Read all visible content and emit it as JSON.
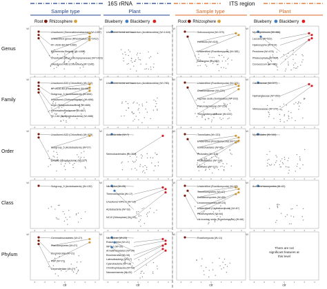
{
  "colors": {
    "blue": "#1f3f8f",
    "orange": "#d9661f",
    "root": "#7a1a0c",
    "rhizosphere": "#d8a23a",
    "blueberry": "#3f7ec9",
    "blackberry": "#d81f24",
    "dots": "#8a8a8a"
  },
  "headers": {
    "s16": "16S rRNA",
    "its": "ITS region",
    "sample_type": "Sample type",
    "plant": "Plant",
    "root": "Root",
    "rhizosphere": "Rhizosphere",
    "blueberry": "Blueberry",
    "blackberry": "Blackberry"
  },
  "rows": [
    "Genus",
    "Family",
    "Order",
    "Class",
    "Phylum"
  ],
  "xlabel": "clr",
  "ylabel": "W",
  "no_features_note": "There are not significant features at this level",
  "chart_data": [
    {
      "type": "scatter",
      "title": "16S rRNA / Sample type",
      "xlabel": "clr",
      "ylabel": "W",
      "panels": [
        {
          "row": "Genus",
          "annotations": [
            "Uncultured (Gemmatimonadaceae) (W=1397)",
            "Unidentified genus (Rhizobiales) (W=1412)",
            "KF-JG30-B3 (W=1390)",
            "Escherichia-Shigella (W=1458)",
            "Uncultured genus (Micropepsaceae) (W=1423)",
            "Uncultured AD3 (Chloroflexi) (W=1345)"
          ]
        },
        {
          "row": "Family",
          "annotations": [
            "Uncultured AD3 (Chloroflexi) (W=712)",
            "KF-JG30-B3 (Rhizobiales) (W=680)",
            "Subgroup_5 (Acidobacteria) (W=654)",
            "Uncultured (Chitinophagales) (W=696)",
            "A21b (Betaproteobacteria) (W=665)",
            "Gemmatimonadaceae (W=687)",
            "SC-I-84 (Betaproteobacteria) (W=688)"
          ]
        },
        {
          "row": "Order",
          "annotations": [
            "Uncultured AD3 (Chloroflexi) (W=379)",
            "Subgroup_5 (Acidobacteria) (W=3?)",
            "OPB56 (Ignavibacteria) (W=32?)"
          ]
        },
        {
          "row": "Class",
          "annotations": [
            "Subgroup_5 (Acidobacteria) (W=130)"
          ]
        },
        {
          "row": "Phylum",
          "annotations": [
            "Gemmatimonadetes (W=2?)",
            "Planctomycetes (W=2?)",
            "Elusimicrobia (W=21)",
            "FBP (W=2?)",
            "Dependentiae (W=2?)"
          ]
        }
      ]
    },
    {
      "type": "scatter",
      "title": "16S rRNA / Plant",
      "xlabel": "clr",
      "ylabel": "W",
      "panels": [
        {
          "row": "Genus",
          "annotations": [
            "Uncultured forest soil bacterium (Acidimicrobiia) (W=1418)"
          ]
        },
        {
          "row": "Family",
          "annotations": [
            "Uncultured forest soil bacterium (Acidimicrobiia) (W=780)"
          ]
        },
        {
          "row": "Order",
          "annotations": [
            "Acidimicrobiia (W=?)",
            "Selenobacteriales (W=364)"
          ]
        },
        {
          "row": "Class",
          "annotations": [
            "Nitrospira (W=25)",
            "Thermoleophilia (W=17)",
            "Uncultured WPS-2 (W=18)",
            "Acidobacteria (W=18)",
            "NC10 (Nitrospirae) (W=20)"
          ]
        },
        {
          "row": "Phylum",
          "annotations": [
            "Nitrospirae (W=23)",
            "Rokubacteria (W=21)",
            "WPS-2 (W=20)",
            "Armatimonadetes (W=20)",
            "Elusimicrobia (W=16)",
            "Latescibacteria (W=17)",
            "Cyanobacteria (W=18)",
            "Omnitrophicaeota (W=18)",
            "Nanoarchaeota (W=20)"
          ]
        }
      ]
    },
    {
      "type": "scatter",
      "title": "ITS region / Sample type",
      "xlabel": "clr",
      "ylabel": "W",
      "panels": [
        {
          "row": "Genus",
          "annotations": [
            "Solicoccozyma (W=379)",
            "Humicola (W=418)",
            "Unidentified (Rozellomycota) (W=381)",
            "Saitozyma (W=380)"
          ]
        },
        {
          "row": "Family",
          "annotations": [
            "Unidentified (Rozellomycota) (W=221)",
            "Chaetomiaceae (W=221)",
            "Incertae sedis (Sordariales) (W=203)",
            "Piskurozymaceae (W=226)",
            "Trimorphomycetaceae (W=222)"
          ]
        },
        {
          "row": "Order",
          "annotations": [
            "Tremellales (W=131)",
            "Unidentified (Rozellomycota) (W=118)",
            "Coniochaetales (W=85)",
            "Pezizales (W=118)",
            "Filobasidiales (W=116)",
            "Boletales (W=121)"
          ]
        },
        {
          "row": "Class",
          "annotations": [
            "Unidentified (Rozellomycota) (W=65)",
            "Tremellomycetes (W=47)",
            "Dothideomycetes (W=65)",
            "Lecanoromycetes (W=23)",
            "Unidentified (Chytridiomycota) (W=6?)",
            "Pezizomycetes (W=64)",
            "cls incertae sedis (Rozellomycota) (W=66)"
          ]
        },
        {
          "row": "Phylum",
          "annotations": [
            "Rozellomycota (W=11)"
          ]
        }
      ]
    },
    {
      "type": "scatter",
      "title": "ITS region / Plant",
      "xlabel": "clr",
      "ylabel": "W",
      "panels": [
        {
          "row": "Genus",
          "annotations": [
            "Mycosymbioces (W=466)",
            "Laccaria (W=522)",
            "Hyaloscypha (W=519)",
            "Pezoloma (W=476)",
            "Phialocephala (W=464)",
            "Cenococcum (W=456)"
          ]
        },
        {
          "row": "Family",
          "annotations": [
            "Clavariaceae (W=377)",
            "Hydnangiaceae (W=353)",
            "Vibrisseaceae (W=370)"
          ]
        },
        {
          "row": "Order",
          "annotations": [
            "Mytilinidales (W=144)"
          ]
        },
        {
          "row": "Class",
          "annotations": [
            "Archaeorhizomycetes (W=63)"
          ]
        },
        {
          "row": "Phylum",
          "annotations": []
        }
      ]
    }
  ]
}
